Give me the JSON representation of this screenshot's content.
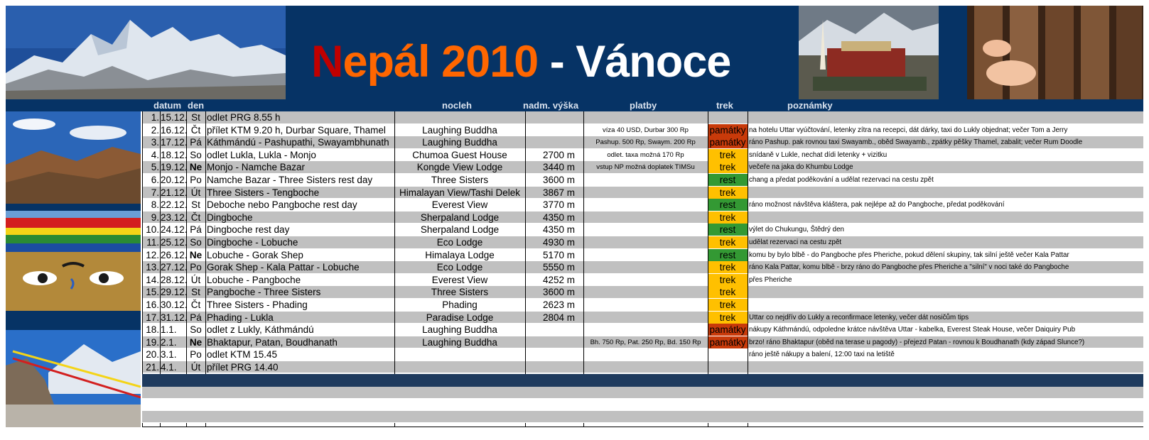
{
  "title": {
    "n": "N",
    "rest": "epál 2010",
    "tail": " - Vánoce"
  },
  "header": {
    "datum": "datum",
    "den": "den",
    "nocleh": "nocleh",
    "vyska": "nadm. výška",
    "platby": "platby",
    "trek": "trek",
    "poznamky": "poznámky"
  },
  "rows": [
    {
      "num": "1.",
      "date": "15.12.",
      "day": "St",
      "route": "odlet PRG 8.55 h",
      "lodge": "",
      "alt": "",
      "pay": "",
      "trek": "",
      "note": ""
    },
    {
      "num": "2.",
      "date": "16.12.",
      "day": "Čt",
      "route": "přílet KTM 9.20 h, Durbar Square, Thamel",
      "lodge": "Laughing Buddha",
      "alt": "",
      "pay": "víza 40 USD, Durbar 300 Rp",
      "trek": "památky",
      "note": "na hotelu Uttar vyúčtování, letenky zítra na recepci, dát dárky, taxi do Lukly objednat; večer Tom a Jerry"
    },
    {
      "num": "3.",
      "date": "17.12.",
      "day": "Pá",
      "route": "Káthmándú - Pashupathi, Swayambhunath",
      "lodge": "Laughing Buddha",
      "alt": "",
      "pay": "Pashup. 500 Rp, Swaym. 200 Rp",
      "trek": "památky",
      "note": "ráno Pashup. pak rovnou taxi Swayamb., oběd Swayamb., zpátky pěšky Thamel, zabalit; večer Rum Doodle"
    },
    {
      "num": "4.",
      "date": "18.12.",
      "day": "So",
      "route": "odlet Lukla, Lukla - Monjo",
      "lodge": "Chumoa Guest House",
      "alt": "2700 m",
      "pay": "odlet. taxa možná 170 Rp",
      "trek": "trek",
      "note": "snídaně v Lukle, nechat dídi letenky + vizitku"
    },
    {
      "num": "5.",
      "date": "19.12.",
      "day": "Ne",
      "route": "Monjo - Namche Bazar",
      "lodge": "Kongde View Lodge",
      "alt": "3440 m",
      "pay": "vstup NP možná doplatek TIMSu",
      "trek": "trek",
      "note": "večeře na jaka do Khumbu Lodge"
    },
    {
      "num": "6.",
      "date": "20.12.",
      "day": "Po",
      "route": "Namche Bazar - Three Sisters rest day",
      "lodge": "Three Sisters",
      "alt": "3600 m",
      "pay": "",
      "trek": "rest",
      "note": "chang a předat poděkování a udělat rezervaci na cestu zpět"
    },
    {
      "num": "7.",
      "date": "21.12.",
      "day": "Út",
      "route": "Three Sisters - Tengboche",
      "lodge": "Himalayan View/Tashi Delek",
      "alt": "3867 m",
      "pay": "",
      "trek": "trek",
      "note": ""
    },
    {
      "num": "8.",
      "date": "22.12.",
      "day": "St",
      "route": "Deboche nebo Pangboche rest day",
      "lodge": "Everest View",
      "alt": "3770 m",
      "pay": "",
      "trek": "rest",
      "note": "ráno možnost návštěva kláštera, pak nejlépe až do Pangboche, předat poděkování"
    },
    {
      "num": "9.",
      "date": "23.12.",
      "day": "Čt",
      "route": "Dingboche",
      "lodge": "Sherpaland Lodge",
      "alt": "4350 m",
      "pay": "",
      "trek": "trek",
      "note": ""
    },
    {
      "num": "10.",
      "date": "24.12.",
      "day": "Pá",
      "route": "Dingboche rest day",
      "lodge": "Sherpaland Lodge",
      "alt": "4350 m",
      "pay": "",
      "trek": "rest",
      "note": "výlet do Chukungu, Štědrý den"
    },
    {
      "num": "11.",
      "date": "25.12.",
      "day": "So",
      "route": "Dingboche - Lobuche",
      "lodge": "Eco Lodge",
      "alt": "4930 m",
      "pay": "",
      "trek": "trek",
      "note": "udělat rezervaci na cestu zpět"
    },
    {
      "num": "12.",
      "date": "26.12.",
      "day": "Ne",
      "route": "Lobuche - Gorak Shep",
      "lodge": "Himalaya Lodge",
      "alt": "5170 m",
      "pay": "",
      "trek": "rest",
      "note": "komu by bylo blbě - do Pangboche přes Pheriche, pokud dělení skupiny, tak silní ještě večer Kala Pattar"
    },
    {
      "num": "13.",
      "date": "27.12.",
      "day": "Po",
      "route": "Gorak Shep - Kala Pattar - Lobuche",
      "lodge": "Eco Lodge",
      "alt": "5550 m",
      "pay": "",
      "trek": "trek",
      "note": "ráno Kala Pattar, komu blbě - brzy ráno do Pangboche přes Pheriche a \"silní\" v noci také do Pangboche"
    },
    {
      "num": "14.",
      "date": "28.12.",
      "day": "Út",
      "route": "Lobuche - Pangboche",
      "lodge": "Everest View",
      "alt": "4252 m",
      "pay": "",
      "trek": "trek",
      "note": "přes Pheriche"
    },
    {
      "num": "15.",
      "date": "29.12.",
      "day": "St",
      "route": "Pangboche - Three Sisters",
      "lodge": "Three Sisters",
      "alt": "3600 m",
      "pay": "",
      "trek": "trek",
      "note": ""
    },
    {
      "num": "16.",
      "date": "30.12.",
      "day": "Čt",
      "route": "Three Sisters - Phading",
      "lodge": "Phading",
      "alt": "2623 m",
      "pay": "",
      "trek": "trek",
      "note": ""
    },
    {
      "num": "17.",
      "date": "31.12.",
      "day": "Pá",
      "route": "Phading - Lukla",
      "lodge": "Paradise Lodge",
      "alt": "2804 m",
      "pay": "",
      "trek": "trek",
      "note": "Uttar co nejdřív do Lukly a reconfirmace letenky, večer dát nosičům tips"
    },
    {
      "num": "18.",
      "date": "1.1.",
      "day": "So",
      "route": "odlet z Lukly, Káthmándú",
      "lodge": "Laughing Buddha",
      "alt": "",
      "pay": "",
      "trek": "památky",
      "note": "nákupy Káthmándú, odpoledne krátce návštěva Uttar - kabelka, Everest Steak House, večer Daiquiry Pub"
    },
    {
      "num": "19.",
      "date": "2.1.",
      "day": "Ne",
      "route": "Bhaktapur, Patan, Boudhanath",
      "lodge": "Laughing Buddha",
      "alt": "",
      "pay": "Bh. 750 Rp, Pat. 250 Rp, Bd. 150 Rp",
      "trek": "památky",
      "note": "brzo! ráno Bhaktapur (oběd na terase u pagody) - přejezd Patan - rovnou k Boudhanath (kdy západ Slunce?)"
    },
    {
      "num": "20.",
      "date": "3.1.",
      "day": "Po",
      "route": "odlet KTM 15.45",
      "lodge": "",
      "alt": "",
      "pay": "",
      "trek": "",
      "note": "ráno ještě nákupy a balení, 12:00 taxi na letiště"
    },
    {
      "num": "21.",
      "date": "4.1.",
      "day": "Út",
      "route": "přílet PRG 14.40",
      "lodge": "",
      "alt": "",
      "pay": "",
      "trek": "",
      "note": ""
    }
  ],
  "images": {
    "banner_left": "everest-panorama-photo",
    "banner_right1": "tengboche-monastery-photo",
    "banner_right2": "prayer-wheels-photo",
    "side1": "mountain-valley-photo",
    "side2": "stupa-eyes-photo",
    "side3": "prayer-flags-photo"
  },
  "colors": {
    "banner": "#063365",
    "pamatky": "#c83a0a",
    "trek": "#ffc000",
    "rest": "#339933",
    "row_gray": "#c0c0c0"
  }
}
